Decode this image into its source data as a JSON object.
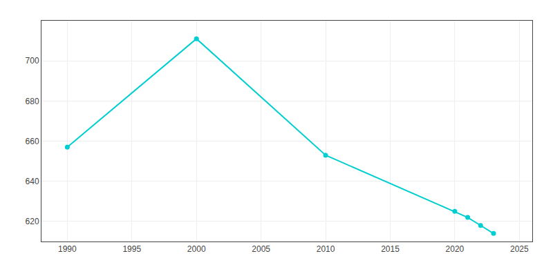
{
  "chart_data": {
    "type": "line",
    "x": [
      1990,
      2000,
      2010,
      2020,
      2021,
      2022,
      2023
    ],
    "values": [
      657,
      711,
      653,
      625,
      622,
      618,
      614
    ],
    "color": "#00CED1",
    "marker": "circle",
    "xlim": [
      1988,
      2026
    ],
    "ylim": [
      610,
      720
    ],
    "xticks": [
      1990,
      1995,
      2000,
      2005,
      2010,
      2015,
      2020,
      2025
    ],
    "yticks": [
      620,
      640,
      660,
      680,
      700
    ],
    "grid": true
  }
}
